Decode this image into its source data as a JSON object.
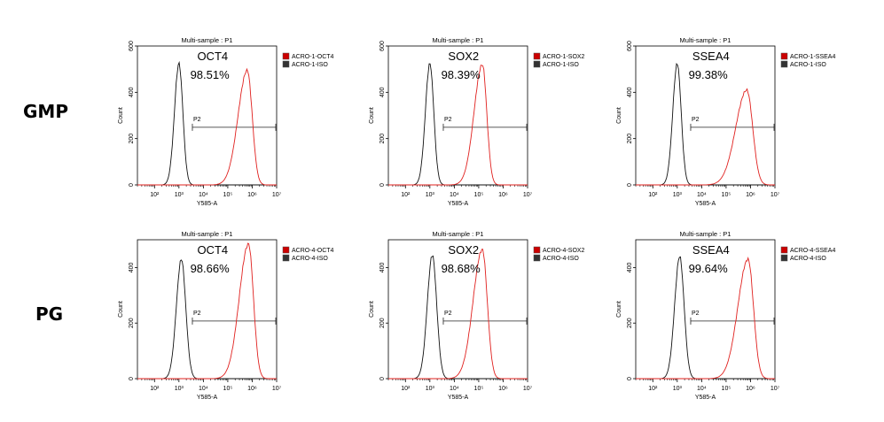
{
  "row_labels": [
    "GMP",
    "PG"
  ],
  "colors": {
    "iso": "#111111",
    "stain": "#e0201e",
    "legend_stain": "#cc0000",
    "legend_iso": "#333333",
    "axis": "#000000"
  },
  "chart_data": [
    {
      "type": "histogram",
      "title": "Multi-sample : P1",
      "marker": "OCT4",
      "percent": "98.51%",
      "xlabel": "Y585-A",
      "ylabel": "Count",
      "xlim_log10": [
        1.3,
        7
      ],
      "ylim": [
        0,
        600
      ],
      "yticks": [
        "0",
        "200",
        "400",
        "600"
      ],
      "xticks": [
        "10²",
        "10³",
        "10⁴",
        "10⁵",
        "10⁶",
        "10⁷"
      ],
      "gate": {
        "label": "P2",
        "from_log10": 3.55,
        "to_log10": 7
      },
      "series": [
        {
          "name": "ACRO-1-OCT4",
          "peak_log10": 5.8,
          "peak_count": 495,
          "width": 0.2
        },
        {
          "name": "ACRO-1-ISO",
          "peak_log10": 3.0,
          "peak_count": 525,
          "width": 0.16
        }
      ]
    },
    {
      "type": "histogram",
      "title": "Multi-sample : P1",
      "marker": "SOX2",
      "percent": "98.39%",
      "xlabel": "Y585-A",
      "ylabel": "Count",
      "xlim_log10": [
        1.3,
        7
      ],
      "ylim": [
        0,
        600
      ],
      "yticks": [
        "0",
        "200",
        "400",
        "600"
      ],
      "xticks": [
        "10²",
        "10³",
        "10⁴",
        "10⁵",
        "10⁶",
        "10⁷"
      ],
      "gate": {
        "label": "P2",
        "from_log10": 3.55,
        "to_log10": 7
      },
      "series": [
        {
          "name": "ACRO-1-SOX2",
          "peak_log10": 5.15,
          "peak_count": 520,
          "width": 0.18
        },
        {
          "name": "ACRO-1-ISO",
          "peak_log10": 3.0,
          "peak_count": 525,
          "width": 0.16
        }
      ]
    },
    {
      "type": "histogram",
      "title": "Multi-sample : P1",
      "marker": "SSEA4",
      "percent": "99.38%",
      "xlabel": "Y585-A",
      "ylabel": "Count",
      "xlim_log10": [
        1.3,
        7
      ],
      "ylim": [
        0,
        600
      ],
      "yticks": [
        "0",
        "200",
        "400",
        "600"
      ],
      "xticks": [
        "10²",
        "10³",
        "10⁴",
        "10⁵",
        "10⁶",
        "10⁷"
      ],
      "gate": {
        "label": "P2",
        "from_log10": 3.55,
        "to_log10": 7
      },
      "series": [
        {
          "name": "ACRO-1-SSEA4",
          "peak_log10": 5.85,
          "peak_count": 410,
          "width": 0.24
        },
        {
          "name": "ACRO-1-ISO",
          "peak_log10": 3.0,
          "peak_count": 525,
          "width": 0.16
        }
      ]
    },
    {
      "type": "histogram",
      "title": "Multi-sample : P1",
      "marker": "OCT4",
      "percent": "98.66%",
      "xlabel": "Y585-A",
      "ylabel": "Count",
      "xlim_log10": [
        1.3,
        7
      ],
      "ylim": [
        0,
        500
      ],
      "yticks": [
        "0",
        "200",
        "400"
      ],
      "xticks": [
        "10²",
        "10³",
        "10⁴",
        "10⁵",
        "10⁶",
        "10⁷"
      ],
      "gate": {
        "label": "P2",
        "from_log10": 3.55,
        "to_log10": 7
      },
      "series": [
        {
          "name": "ACRO-4-OCT4",
          "peak_log10": 5.85,
          "peak_count": 485,
          "width": 0.2
        },
        {
          "name": "ACRO-4-ISO",
          "peak_log10": 3.1,
          "peak_count": 430,
          "width": 0.18
        }
      ]
    },
    {
      "type": "histogram",
      "title": "Multi-sample : P1",
      "marker": "SOX2",
      "percent": "98.68%",
      "xlabel": "Y585-A",
      "ylabel": "Count",
      "xlim_log10": [
        1.3,
        7
      ],
      "ylim": [
        0,
        500
      ],
      "yticks": [
        "0",
        "200",
        "400"
      ],
      "xticks": [
        "10²",
        "10³",
        "10⁴",
        "10⁵",
        "10⁶",
        "10⁷"
      ],
      "gate": {
        "label": "P2",
        "from_log10": 3.55,
        "to_log10": 7
      },
      "series": [
        {
          "name": "ACRO-4-SOX2",
          "peak_log10": 5.15,
          "peak_count": 465,
          "width": 0.2
        },
        {
          "name": "ACRO-4-ISO",
          "peak_log10": 3.1,
          "peak_count": 445,
          "width": 0.18
        }
      ]
    },
    {
      "type": "histogram",
      "title": "Multi-sample : P1",
      "marker": "SSEA4",
      "percent": "99.64%",
      "xlabel": "Y585-A",
      "ylabel": "Count",
      "xlim_log10": [
        1.3,
        7
      ],
      "ylim": [
        0,
        500
      ],
      "yticks": [
        "0",
        "200",
        "400"
      ],
      "xticks": [
        "10²",
        "10³",
        "10⁴",
        "10⁵",
        "10⁶",
        "10⁷"
      ],
      "gate": {
        "label": "P2",
        "from_log10": 3.55,
        "to_log10": 7
      },
      "series": [
        {
          "name": "ACRO-4-SSEA4",
          "peak_log10": 5.9,
          "peak_count": 430,
          "width": 0.22
        },
        {
          "name": "ACRO-4-ISO",
          "peak_log10": 3.1,
          "peak_count": 440,
          "width": 0.18
        }
      ]
    }
  ]
}
